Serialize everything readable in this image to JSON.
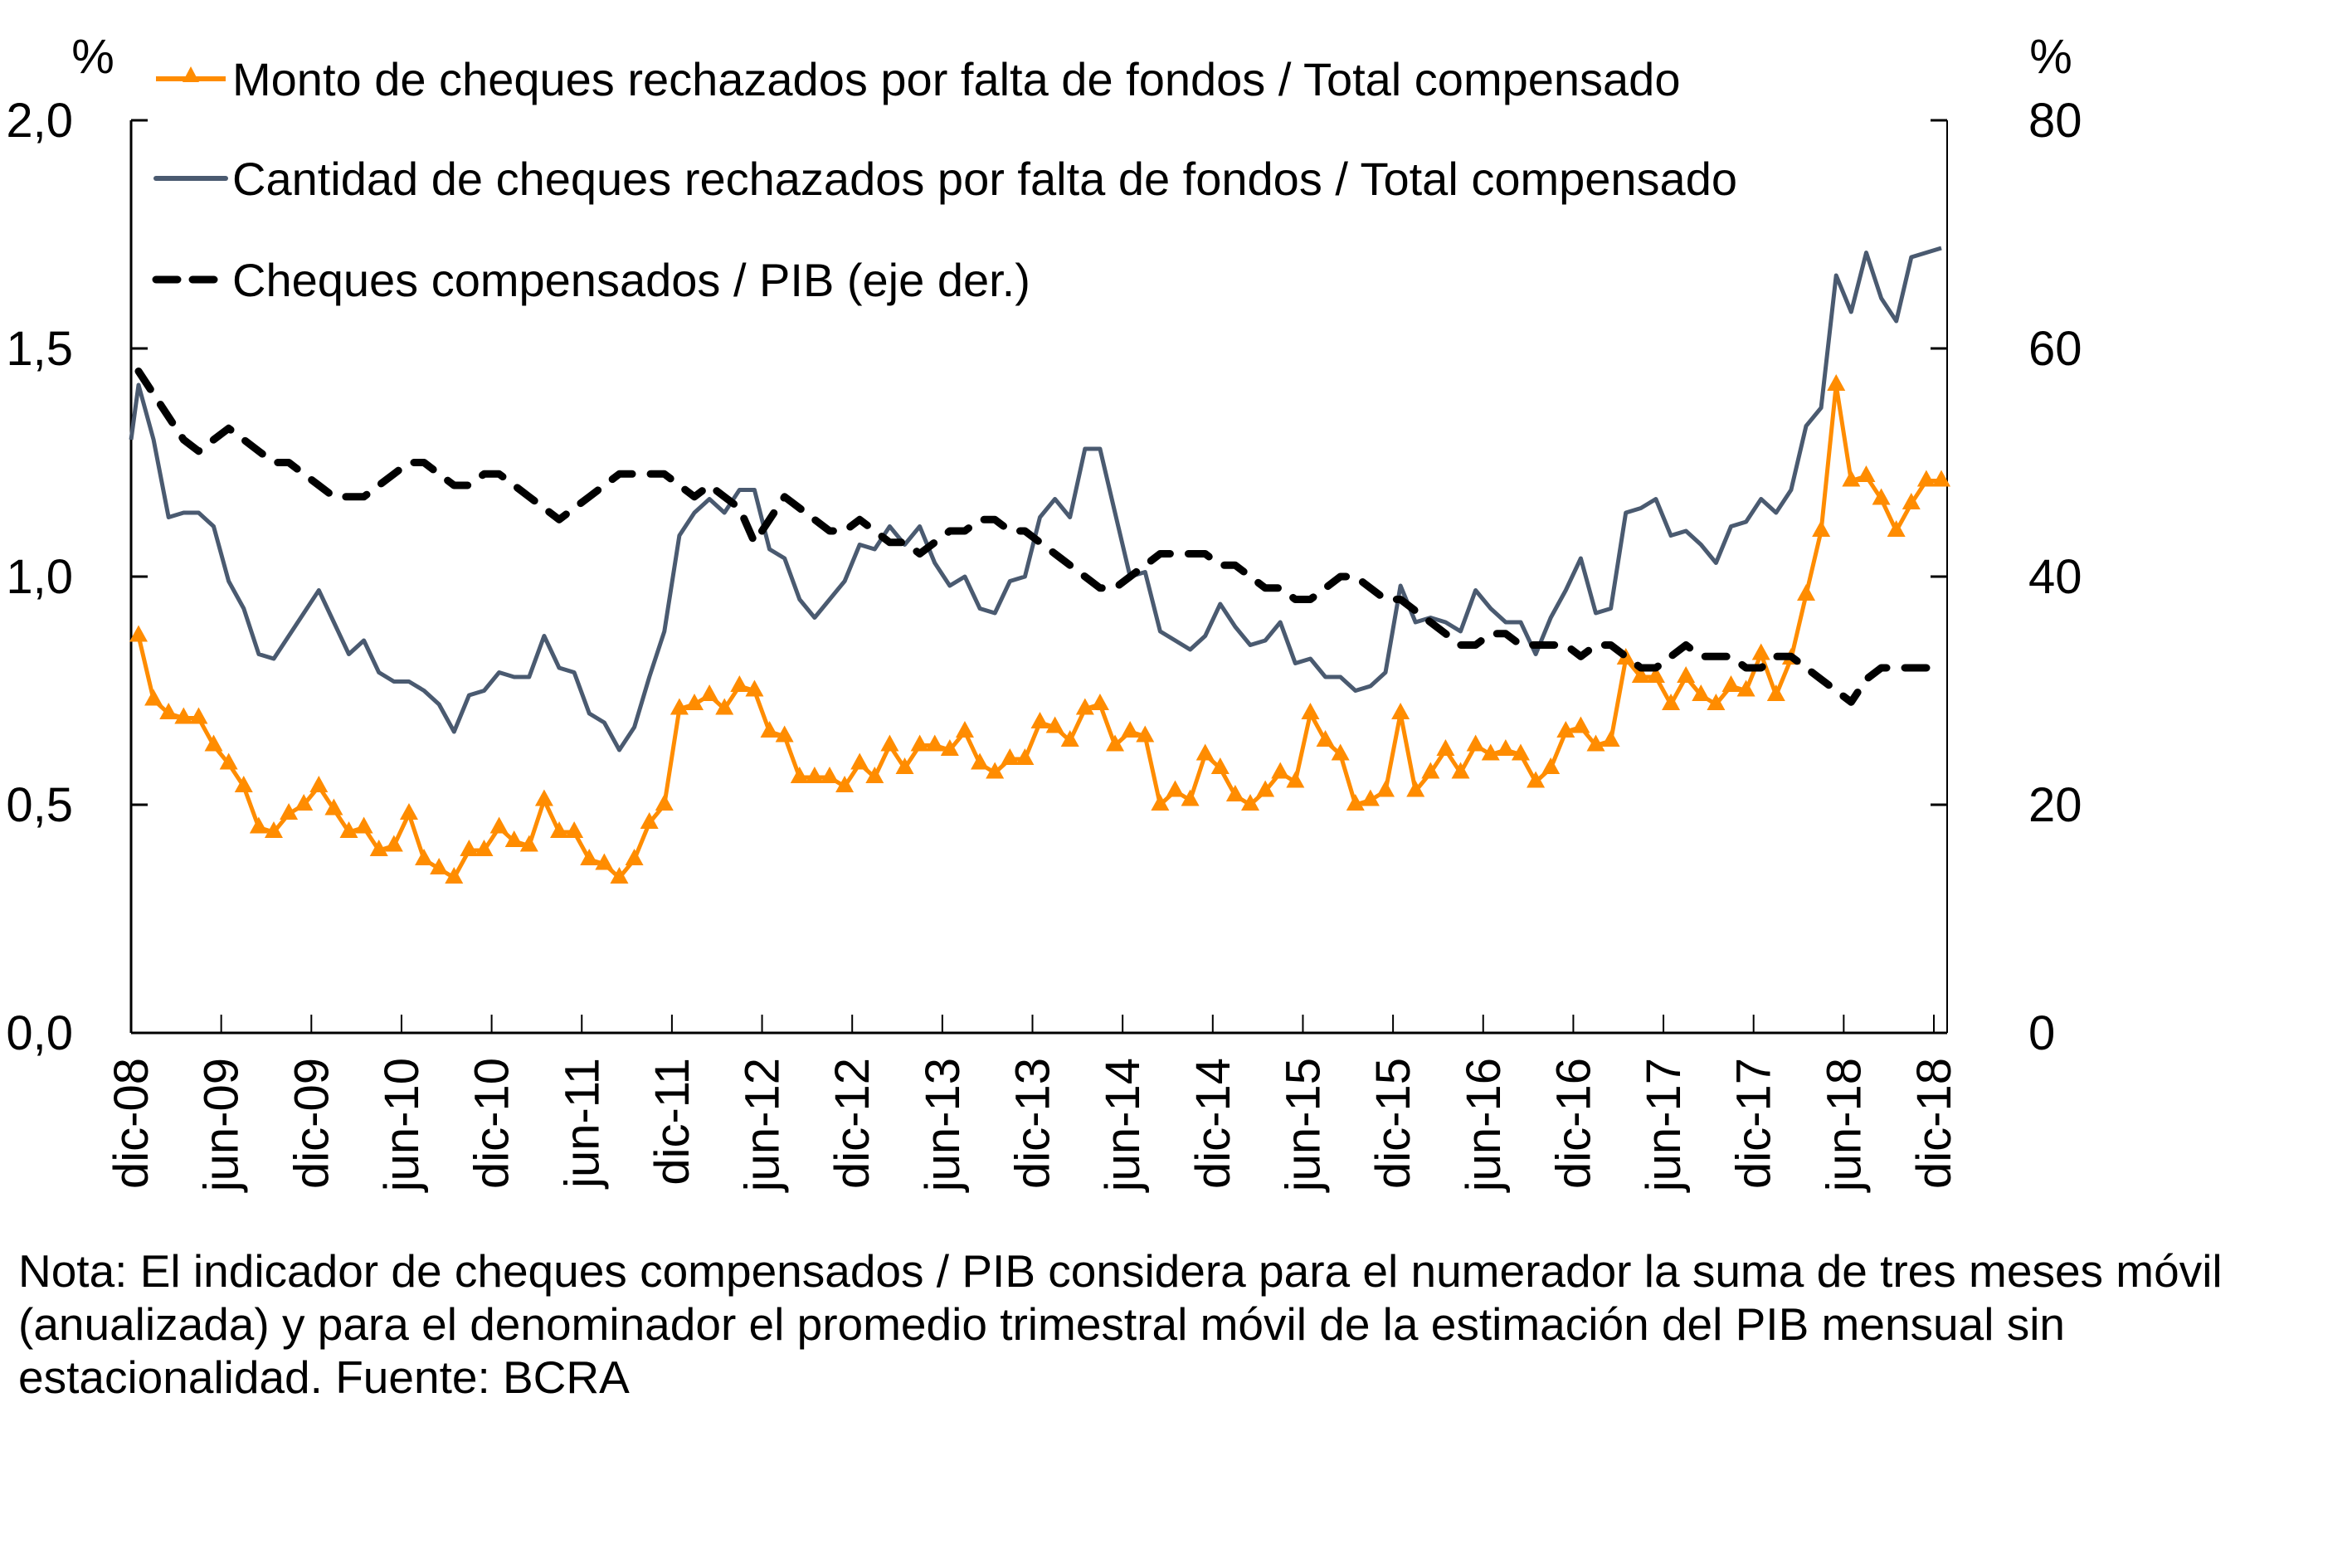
{
  "chart_data": {
    "type": "line",
    "title": "",
    "y_left": {
      "unit_label": "%",
      "ticks": [
        "2,0",
        "1,5",
        "1,0",
        "0,5",
        "0,0"
      ],
      "tick_values": [
        2.0,
        1.5,
        1.0,
        0.5,
        0.0
      ],
      "ylim": [
        0,
        2.0
      ]
    },
    "y_right": {
      "unit_label": "%",
      "ticks": [
        "80",
        "60",
        "40",
        "20",
        "0"
      ],
      "tick_values": [
        80,
        60,
        40,
        20,
        0
      ],
      "ylim": [
        0,
        80
      ]
    },
    "x_tick_labels": [
      "dic-08",
      "jun-09",
      "dic-09",
      "jun-10",
      "dic-10",
      "jun-11",
      "dic-11",
      "jun-12",
      "dic-12",
      "jun-13",
      "dic-13",
      "jun-14",
      "dic-14",
      "jun-15",
      "dic-15",
      "jun-16",
      "dic-16",
      "jun-17",
      "dic-17",
      "jun-18",
      "dic-18"
    ],
    "x_start": "dic-08",
    "x_end": "dic-18",
    "frequency": "monthly",
    "legend_placement": "top-left",
    "series": [
      {
        "name": "Monto de cheques rechazados por falta de fondos / Total compensado",
        "axis": "left",
        "color": "#FF8C00",
        "marker": "triangle",
        "style": "solid",
        "values": [
          0.87,
          0.73,
          0.7,
          0.69,
          0.69,
          0.63,
          0.59,
          0.54,
          0.45,
          0.44,
          0.48,
          0.5,
          0.54,
          0.49,
          0.44,
          0.45,
          0.4,
          0.41,
          0.48,
          0.38,
          0.36,
          0.34,
          0.4,
          0.4,
          0.45,
          0.42,
          0.41,
          0.51,
          0.44,
          0.44,
          0.38,
          0.37,
          0.34,
          0.38,
          0.46,
          0.5,
          0.71,
          0.72,
          0.74,
          0.71,
          0.76,
          0.75,
          0.66,
          0.65,
          0.56,
          0.56,
          0.56,
          0.54,
          0.59,
          0.56,
          0.63,
          0.58,
          0.63,
          0.63,
          0.62,
          0.66,
          0.59,
          0.57,
          0.6,
          0.6,
          0.68,
          0.67,
          0.64,
          0.71,
          0.72,
          0.63,
          0.66,
          0.65,
          0.5,
          0.53,
          0.51,
          0.61,
          0.58,
          0.52,
          0.5,
          0.53,
          0.57,
          0.55,
          0.7,
          0.64,
          0.61,
          0.5,
          0.51,
          0.53,
          0.7,
          0.53,
          0.57,
          0.62,
          0.57,
          0.63,
          0.61,
          0.62,
          0.61,
          0.55,
          0.58,
          0.66,
          0.67,
          0.63,
          0.64,
          0.82,
          0.78,
          0.78,
          0.72,
          0.78,
          0.74,
          0.72,
          0.76,
          0.75,
          0.83,
          0.74,
          0.82,
          0.96,
          1.1,
          1.42,
          1.21,
          1.22,
          1.17,
          1.1,
          1.16,
          1.21,
          1.21
        ]
      },
      {
        "name": "Cantidad de cheques rechazados por falta de fondos / Total compensado",
        "axis": "left",
        "color": "#4A5A70",
        "marker": "none",
        "style": "solid",
        "values": [
          1.42,
          1.3,
          1.13,
          1.14,
          1.14,
          1.11,
          0.99,
          0.93,
          0.83,
          0.82,
          0.87,
          0.92,
          0.97,
          0.9,
          0.83,
          0.86,
          0.79,
          0.77,
          0.77,
          0.75,
          0.72,
          0.66,
          0.74,
          0.75,
          0.79,
          0.78,
          0.78,
          0.87,
          0.8,
          0.79,
          0.7,
          0.68,
          0.62,
          0.67,
          0.78,
          0.88,
          1.09,
          1.14,
          1.17,
          1.14,
          1.19,
          1.19,
          1.06,
          1.04,
          0.95,
          0.91,
          0.95,
          0.99,
          1.07,
          1.06,
          1.11,
          1.07,
          1.11,
          1.03,
          0.98,
          1.0,
          0.93,
          0.92,
          0.99,
          1.0,
          1.13,
          1.17,
          1.13,
          1.28,
          1.28,
          1.14,
          1.0,
          1.01,
          0.88,
          0.86,
          0.84,
          0.87,
          0.94,
          0.89,
          0.85,
          0.86,
          0.9,
          0.81,
          0.82,
          0.78,
          0.78,
          0.75,
          0.76,
          0.79,
          0.98,
          0.9,
          0.91,
          0.9,
          0.88,
          0.97,
          0.93,
          0.9,
          0.9,
          0.83,
          0.91,
          0.97,
          1.04,
          0.92,
          0.93,
          1.14,
          1.15,
          1.17,
          1.09,
          1.1,
          1.07,
          1.03,
          1.11,
          1.12,
          1.17,
          1.14,
          1.19,
          1.33,
          1.37,
          1.66,
          1.58,
          1.71,
          1.61,
          1.56,
          1.7,
          1.71,
          1.72
        ]
      },
      {
        "name": "Cheques compensados / PIB (eje der.)",
        "axis": "right",
        "color": "#000000",
        "marker": "none",
        "style": "dashed",
        "values": [
          58,
          56,
          54,
          52,
          51,
          52,
          53,
          52,
          51,
          50,
          50,
          49,
          48,
          47,
          47,
          47,
          48,
          49,
          50,
          50,
          49,
          48,
          48,
          49,
          49,
          48,
          47,
          46,
          45,
          46,
          47,
          48,
          49,
          49,
          49,
          49,
          48,
          47,
          48,
          47,
          46,
          43,
          45,
          47,
          46,
          45,
          44,
          44,
          45,
          44,
          43,
          43,
          42,
          43,
          44,
          44,
          45,
          45,
          44,
          44,
          43,
          42,
          41,
          40,
          39,
          39,
          40,
          41,
          42,
          42,
          42,
          42,
          41,
          41,
          40,
          39,
          39,
          38,
          38,
          39,
          40,
          40,
          39,
          38,
          38,
          37,
          36,
          35,
          34,
          34,
          35,
          35,
          34,
          34,
          34,
          34,
          33,
          34,
          34,
          33,
          32,
          32,
          33,
          34,
          33,
          33,
          33,
          32,
          32,
          33,
          33,
          32,
          31,
          30,
          29,
          31,
          32,
          32,
          32,
          32,
          32
        ]
      }
    ]
  },
  "legend": {
    "items": [
      "Monto de cheques rechazados por falta de fondos / Total compensado",
      "Cantidad de cheques rechazados por falta de fondos / Total compensado",
      "Cheques compensados / PIB (eje der.)"
    ]
  },
  "note": "Nota: El indicador de cheques compensados / PIB considera para el numerador la suma de tres meses móvil (anualizada) y para el denominador el promedio trimestral móvil de la estimación del PIB mensual sin estacionalidad. Fuente: BCRA"
}
